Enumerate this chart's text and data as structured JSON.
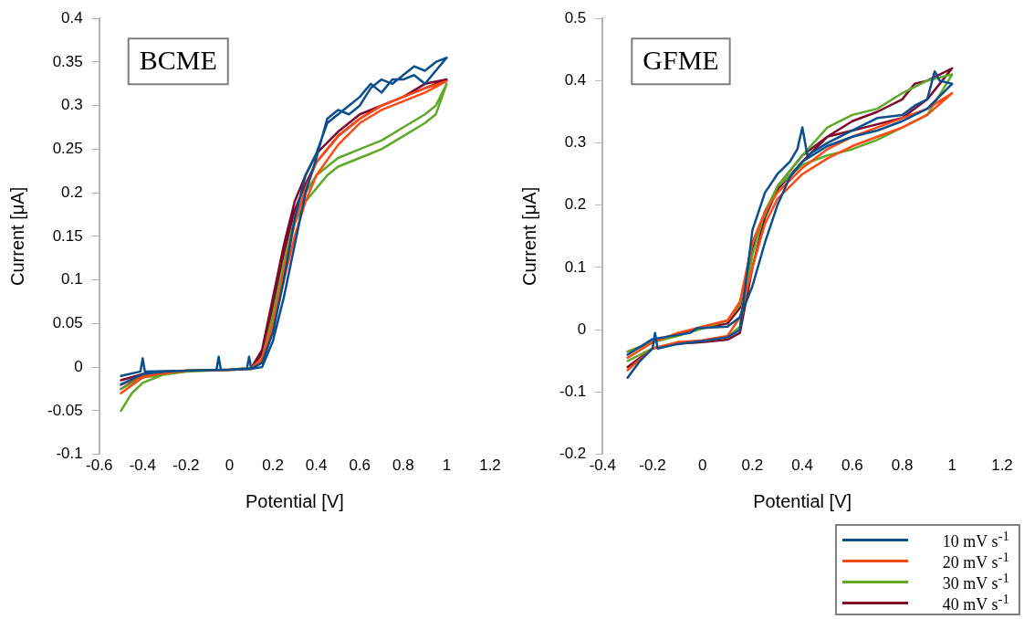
{
  "chart_data": [
    {
      "type": "line",
      "xlabel": "Potential [V]",
      "ylabel": "Current [μA]",
      "annotations": [
        "BCME"
      ],
      "xlim": [
        -0.6,
        1.2
      ],
      "xticks": [
        -0.6,
        -0.4,
        -0.2,
        0,
        0.2,
        0.4,
        0.6,
        0.8,
        1,
        1.2
      ],
      "ylim": [
        -0.1,
        0.4
      ],
      "yticks": [
        -0.1,
        -0.05,
        0,
        0.05,
        0.1,
        0.15,
        0.2,
        0.25,
        0.3,
        0.35,
        0.4
      ],
      "grid": false,
      "legend": false,
      "marker": "none",
      "line_style": "solid",
      "series": [
        {
          "color": "#0a4f8c",
          "x": [
            -0.5,
            -0.4,
            -0.3,
            -0.2,
            0,
            0.1,
            0.15,
            0.2,
            0.25,
            0.3,
            0.35,
            0.4,
            0.45,
            0.5,
            0.55,
            0.6,
            0.65,
            0.7,
            0.75,
            0.8,
            0.85,
            0.9,
            0.95,
            1.0,
            0.95,
            0.9,
            0.85,
            0.8,
            0.75,
            0.7,
            0.65,
            0.6,
            0.55,
            0.5,
            0.45,
            0.4,
            0.35,
            0.3,
            0.25,
            0.2,
            0.15,
            0.1,
            0.09,
            0.08,
            0,
            -0.04,
            -0.05,
            -0.06,
            -0.2,
            -0.39,
            -0.4,
            -0.41,
            -0.5
          ],
          "values": [
            -0.02,
            -0.008,
            -0.005,
            -0.004,
            -0.003,
            -0.002,
            0.005,
            0.04,
            0.1,
            0.17,
            0.22,
            0.245,
            0.28,
            0.29,
            0.3,
            0.31,
            0.325,
            0.315,
            0.33,
            0.33,
            0.335,
            0.325,
            0.34,
            0.355,
            0.35,
            0.34,
            0.345,
            0.335,
            0.325,
            0.33,
            0.32,
            0.3,
            0.29,
            0.295,
            0.285,
            0.24,
            0.2,
            0.14,
            0.08,
            0.03,
            0.0,
            -0.002,
            0.012,
            -0.002,
            -0.003,
            -0.003,
            0.012,
            -0.003,
            -0.004,
            -0.005,
            0.01,
            -0.005,
            -0.01
          ]
        },
        {
          "color": "#ff4a14",
          "x": [
            -0.5,
            -0.4,
            -0.3,
            -0.2,
            0,
            0.1,
            0.15,
            0.2,
            0.25,
            0.3,
            0.35,
            0.4,
            0.5,
            0.6,
            0.7,
            0.8,
            0.9,
            1.0,
            0.9,
            0.8,
            0.7,
            0.6,
            0.5,
            0.4,
            0.35,
            0.3,
            0.25,
            0.2,
            0.15,
            0.1,
            0,
            -0.2,
            -0.4,
            -0.5
          ],
          "values": [
            -0.03,
            -0.012,
            -0.006,
            -0.004,
            -0.003,
            -0.002,
            0.008,
            0.045,
            0.1,
            0.15,
            0.19,
            0.22,
            0.255,
            0.28,
            0.295,
            0.305,
            0.315,
            0.328,
            0.32,
            0.31,
            0.3,
            0.285,
            0.265,
            0.235,
            0.205,
            0.165,
            0.11,
            0.05,
            0.01,
            -0.002,
            -0.003,
            -0.004,
            -0.01,
            -0.02
          ]
        },
        {
          "color": "#5fa82a",
          "x": [
            -0.5,
            -0.45,
            -0.4,
            -0.3,
            -0.2,
            0,
            0.1,
            0.15,
            0.2,
            0.25,
            0.3,
            0.35,
            0.4,
            0.45,
            0.5,
            0.6,
            0.7,
            0.8,
            0.9,
            0.95,
            1.0,
            0.95,
            0.9,
            0.8,
            0.7,
            0.6,
            0.5,
            0.4,
            0.35,
            0.3,
            0.25,
            0.2,
            0.15,
            0.1,
            0,
            -0.2,
            -0.4,
            -0.5
          ],
          "values": [
            -0.05,
            -0.03,
            -0.018,
            -0.008,
            -0.004,
            -0.003,
            -0.001,
            0.01,
            0.06,
            0.12,
            0.165,
            0.19,
            0.205,
            0.22,
            0.23,
            0.24,
            0.25,
            0.265,
            0.28,
            0.29,
            0.325,
            0.3,
            0.29,
            0.275,
            0.26,
            0.25,
            0.24,
            0.22,
            0.2,
            0.17,
            0.12,
            0.06,
            0.01,
            -0.002,
            -0.003,
            -0.005,
            -0.012,
            -0.025
          ]
        },
        {
          "color": "#7d0a2a",
          "x": [
            -0.5,
            -0.4,
            -0.3,
            -0.2,
            0,
            0.1,
            0.15,
            0.2,
            0.25,
            0.3,
            0.35,
            0.4,
            0.5,
            0.6,
            0.7,
            0.8,
            0.9,
            1.0,
            0.9,
            0.8,
            0.7,
            0.6,
            0.5,
            0.4,
            0.35,
            0.3,
            0.25,
            0.2,
            0.15,
            0.1,
            0,
            -0.2,
            -0.4,
            -0.5
          ],
          "values": [
            -0.025,
            -0.01,
            -0.005,
            -0.004,
            -0.003,
            -0.001,
            0.015,
            0.07,
            0.13,
            0.18,
            0.21,
            0.235,
            0.265,
            0.285,
            0.3,
            0.31,
            0.32,
            0.33,
            0.325,
            0.31,
            0.3,
            0.29,
            0.27,
            0.245,
            0.22,
            0.19,
            0.14,
            0.08,
            0.02,
            -0.001,
            -0.003,
            -0.004,
            -0.008,
            -0.015
          ]
        }
      ]
    },
    {
      "type": "line",
      "xlabel": "Potential [V]",
      "ylabel": "Current [μA]",
      "annotations": [
        "GFME"
      ],
      "xlim": [
        -0.4,
        1.2
      ],
      "xticks": [
        -0.4,
        -0.2,
        0,
        0.2,
        0.4,
        0.6,
        0.8,
        1,
        1.2
      ],
      "ylim": [
        -0.2,
        0.5
      ],
      "yticks": [
        -0.2,
        -0.1,
        0,
        0.1,
        0.2,
        0.3,
        0.4,
        0.5
      ],
      "grid": false,
      "legend": "bottom right",
      "marker": "none",
      "line_style": "solid",
      "series": [
        {
          "name": "10 mV s$^{-1}$",
          "color": "#0a4f8c",
          "x": [
            -0.3,
            -0.25,
            -0.2,
            -0.19,
            -0.18,
            -0.1,
            0,
            0.1,
            0.15,
            0.2,
            0.25,
            0.3,
            0.35,
            0.38,
            0.4,
            0.42,
            0.5,
            0.6,
            0.7,
            0.8,
            0.85,
            0.9,
            0.93,
            0.95,
            1.0,
            0.9,
            0.8,
            0.7,
            0.6,
            0.5,
            0.4,
            0.35,
            0.3,
            0.25,
            0.2,
            0.15,
            0.1,
            0,
            -0.02,
            -0.05,
            -0.2,
            -0.3
          ],
          "values": [
            -0.077,
            -0.05,
            -0.03,
            -0.005,
            -0.03,
            -0.023,
            -0.018,
            -0.012,
            0.0,
            0.16,
            0.22,
            0.25,
            0.27,
            0.29,
            0.325,
            0.28,
            0.3,
            0.32,
            0.34,
            0.345,
            0.36,
            0.37,
            0.415,
            0.4,
            0.395,
            0.355,
            0.335,
            0.32,
            0.31,
            0.295,
            0.27,
            0.245,
            0.2,
            0.14,
            0.07,
            0.02,
            0.005,
            0.003,
            0.003,
            -0.005,
            -0.015,
            -0.04
          ]
        },
        {
          "name": "20 mV s$^{-1}$",
          "color": "#ff4a14",
          "x": [
            -0.3,
            -0.2,
            -0.1,
            0,
            0.1,
            0.15,
            0.2,
            0.25,
            0.3,
            0.4,
            0.5,
            0.6,
            0.7,
            0.8,
            0.9,
            1.0,
            0.9,
            0.8,
            0.7,
            0.6,
            0.5,
            0.4,
            0.3,
            0.25,
            0.2,
            0.15,
            0.1,
            0,
            -0.1,
            -0.2,
            -0.3
          ],
          "values": [
            -0.065,
            -0.03,
            -0.02,
            -0.017,
            -0.01,
            0.02,
            0.1,
            0.17,
            0.21,
            0.25,
            0.275,
            0.295,
            0.31,
            0.325,
            0.345,
            0.38,
            0.355,
            0.34,
            0.325,
            0.31,
            0.29,
            0.26,
            0.22,
            0.19,
            0.14,
            0.045,
            0.015,
            0.005,
            -0.005,
            -0.02,
            -0.045
          ]
        },
        {
          "name": "30 mV s$^{-1}$",
          "color": "#5fa82a",
          "x": [
            -0.3,
            -0.2,
            -0.1,
            0,
            0.1,
            0.15,
            0.2,
            0.25,
            0.3,
            0.4,
            0.5,
            0.6,
            0.7,
            0.8,
            0.9,
            1.0,
            0.9,
            0.8,
            0.7,
            0.6,
            0.5,
            0.4,
            0.3,
            0.2,
            0.15,
            0.1,
            0,
            -0.1,
            -0.2,
            -0.3
          ],
          "values": [
            -0.05,
            -0.03,
            -0.02,
            -0.018,
            -0.012,
            0.005,
            0.12,
            0.19,
            0.23,
            0.265,
            0.28,
            0.29,
            0.305,
            0.325,
            0.345,
            0.41,
            0.4,
            0.38,
            0.355,
            0.345,
            0.325,
            0.28,
            0.23,
            0.14,
            0.04,
            0.015,
            0.002,
            -0.01,
            -0.02,
            -0.035
          ]
        },
        {
          "name": "40 mV s$^{-1}$",
          "color": "#7d0a2a",
          "x": [
            -0.3,
            -0.2,
            -0.1,
            0,
            0.1,
            0.15,
            0.2,
            0.25,
            0.3,
            0.4,
            0.5,
            0.6,
            0.7,
            0.8,
            0.85,
            0.9,
            1.0,
            0.9,
            0.8,
            0.7,
            0.6,
            0.5,
            0.4,
            0.3,
            0.2,
            0.15,
            0.1,
            0,
            -0.1,
            -0.2,
            -0.3
          ],
          "values": [
            -0.06,
            -0.03,
            -0.022,
            -0.02,
            -0.016,
            -0.005,
            0.1,
            0.18,
            0.225,
            0.27,
            0.31,
            0.335,
            0.35,
            0.37,
            0.395,
            0.4,
            0.42,
            0.37,
            0.34,
            0.33,
            0.32,
            0.31,
            0.28,
            0.23,
            0.13,
            0.035,
            0.01,
            0.003,
            -0.008,
            -0.02,
            -0.035
          ]
        }
      ]
    }
  ]
}
